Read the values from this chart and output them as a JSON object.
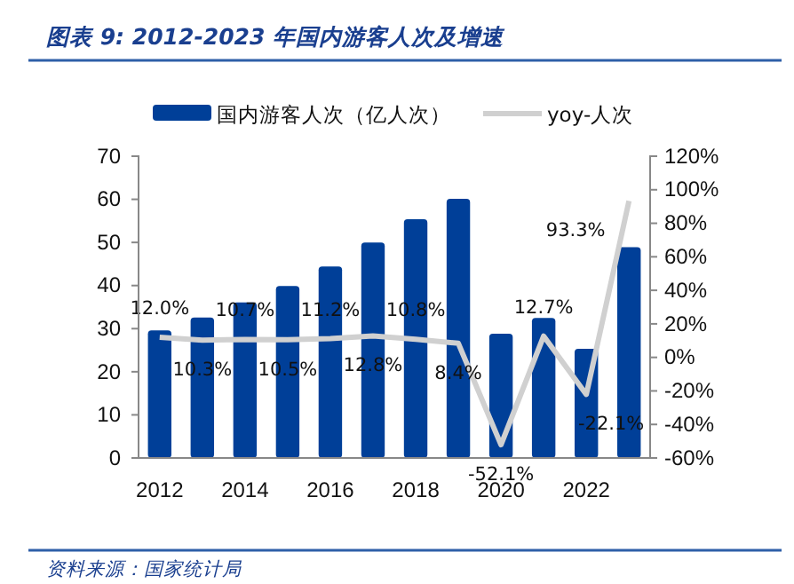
{
  "chart_data": {
    "type": "bar",
    "title": "图表 9:  2012-2023 年国内游客人次及增速",
    "categories": [
      "2012",
      null,
      "2014",
      null,
      "2016",
      null,
      "2018",
      null,
      "2020",
      null,
      "2022",
      null
    ],
    "series": [
      {
        "name": "国内游客人次（亿人次）",
        "color": "#003f98",
        "values": [
          29.6,
          32.6,
          36.1,
          39.9,
          44.4,
          50.0,
          55.4,
          60.1,
          28.8,
          32.5,
          25.3,
          48.9
        ]
      },
      {
        "name": "yoy-人次",
        "type": "line",
        "axis": "y2",
        "color": "#d0d0d0",
        "values": [
          12.0,
          10.3,
          10.7,
          10.5,
          11.2,
          12.8,
          10.8,
          8.4,
          -52.1,
          12.7,
          -22.1,
          93.3
        ],
        "value_labels": [
          "12.0%",
          "10.3%",
          "10.7%",
          "10.5%",
          "11.2%",
          "12.8%",
          "10.8%",
          "8.4%",
          "-52.1%",
          "12.7%",
          "-22.1%",
          "93.3%"
        ]
      }
    ],
    "ylim": [
      0,
      70
    ],
    "yticks": [
      0,
      10,
      20,
      30,
      40,
      50,
      60,
      70
    ],
    "y2lim": [
      -60,
      120
    ],
    "y2ticks": [
      {
        "value": -60,
        "label": "-60%"
      },
      {
        "value": -40,
        "label": "-40%"
      },
      {
        "value": -20,
        "label": "-20%"
      },
      {
        "value": 0,
        "label": "0%"
      },
      {
        "value": 20,
        "label": "20%"
      },
      {
        "value": 40,
        "label": "40%"
      },
      {
        "value": 60,
        "label": "60%"
      },
      {
        "value": 80,
        "label": "80%"
      },
      {
        "value": 100,
        "label": "100%"
      },
      {
        "value": 120,
        "label": "120%"
      }
    ],
    "legend": "top",
    "grid": false,
    "marker": "none",
    "line_style": "solid",
    "annotations": [
      "资料来源：国家统计局"
    ]
  }
}
